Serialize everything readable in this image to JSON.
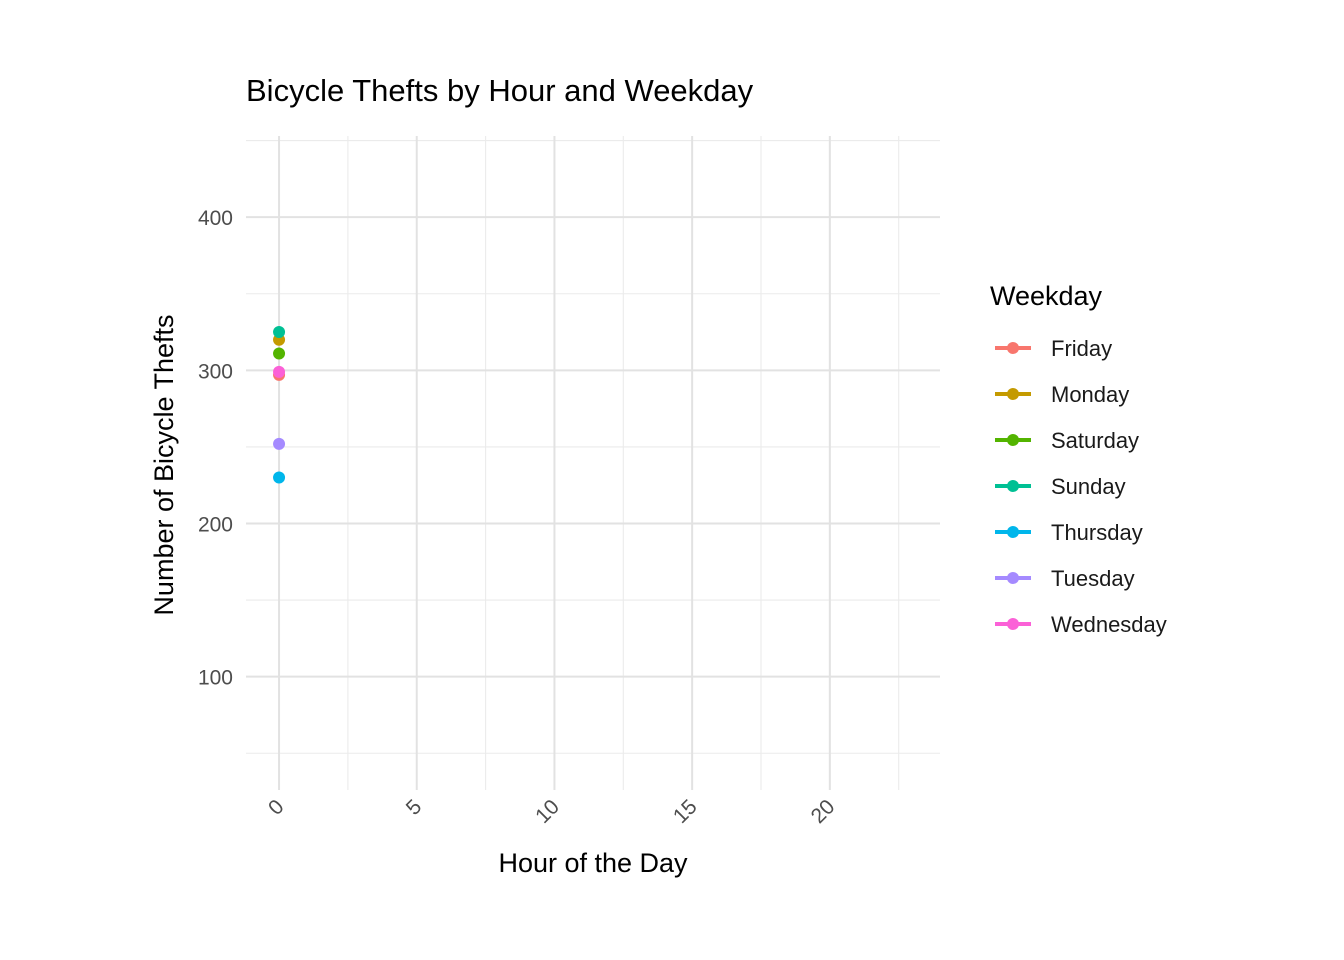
{
  "chart_data": {
    "type": "line",
    "title": "Bicycle Thefts by Hour and Weekday",
    "xlabel": "Hour of the Day",
    "ylabel": "Number of Bicycle Thefts",
    "xlim": [
      -1.2,
      24
    ],
    "ylim": [
      26,
      453
    ],
    "x_ticks": [
      0,
      5,
      10,
      15,
      20
    ],
    "x_ticks_minor": [
      2.5,
      7.5,
      12.5,
      17.5,
      22.5
    ],
    "y_ticks": [
      100,
      200,
      300,
      400
    ],
    "y_ticks_minor": [
      50,
      150,
      250,
      350,
      450
    ],
    "grid": true,
    "legend": {
      "title": "Weekday",
      "position": "right"
    },
    "series": [
      {
        "name": "Friday",
        "color": "#F8766D",
        "x": [
          0
        ],
        "y": [
          297
        ]
      },
      {
        "name": "Monday",
        "color": "#C49A00",
        "x": [
          0
        ],
        "y": [
          320
        ]
      },
      {
        "name": "Saturday",
        "color": "#53B400",
        "x": [
          0
        ],
        "y": [
          311
        ]
      },
      {
        "name": "Sunday",
        "color": "#00C094",
        "x": [
          0
        ],
        "y": [
          325
        ]
      },
      {
        "name": "Thursday",
        "color": "#00B6EB",
        "x": [
          0
        ],
        "y": [
          230
        ]
      },
      {
        "name": "Tuesday",
        "color": "#A58AFF",
        "x": [
          0
        ],
        "y": [
          252
        ]
      },
      {
        "name": "Wednesday",
        "color": "#FB61D7",
        "x": [
          0
        ],
        "y": [
          299
        ]
      }
    ]
  }
}
